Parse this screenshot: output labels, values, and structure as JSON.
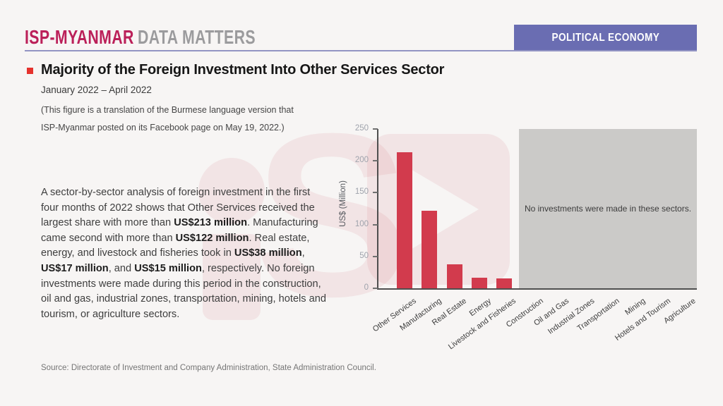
{
  "header": {
    "brand_primary": "ISP-MYANMAR",
    "brand_secondary": "DATA MATTERS",
    "category_badge": "POLITICAL ECONOMY"
  },
  "title_block": {
    "title": "Majority of the Foreign Investment Into Other Services Sector",
    "period": "January 2022 – April 2022",
    "note_line1": "(This figure is a translation of the Burmese language version that",
    "note_line2": "ISP-Myanmar posted on its Facebook page on May 19, 2022.)"
  },
  "body_paragraph": {
    "segments": [
      {
        "text": "A sector-by-sector analysis of foreign investment in the first four months of 2022 shows that Other Services received the largest share with more than ",
        "bold": false
      },
      {
        "text": "US$213 million",
        "bold": true
      },
      {
        "text": ". Manufacturing came second with more than ",
        "bold": false
      },
      {
        "text": "US$122 million",
        "bold": true
      },
      {
        "text": ". Real estate, energy, and livestock and fisheries took in ",
        "bold": false
      },
      {
        "text": "US$38 million",
        "bold": true
      },
      {
        "text": ", ",
        "bold": false
      },
      {
        "text": "US$17 million",
        "bold": true
      },
      {
        "text": ", and ",
        "bold": false
      },
      {
        "text": "US$15 million",
        "bold": true
      },
      {
        "text": ", respectively. No foreign investments were made during this period in the construction, oil and gas, industrial zones, transportation, mining, hotels and tourism, or agriculture sectors.",
        "bold": false
      }
    ]
  },
  "chart_data": {
    "type": "bar",
    "title": "",
    "xlabel": "",
    "ylabel": "US$ (Million)",
    "ylim": [
      0,
      250
    ],
    "yticks": [
      0,
      50,
      100,
      150,
      200,
      250
    ],
    "grid": false,
    "legend": "none",
    "categories": [
      "Other Services",
      "Manufacturing",
      "Real Estate",
      "Energy",
      "Livestock and Fisheries",
      "Construction",
      "Oil and Gas",
      "Industrial Zones",
      "Transportation",
      "Mining",
      "Hotels and Tourism",
      "Agriculture"
    ],
    "values": [
      213,
      122,
      38,
      17,
      15,
      0,
      0,
      0,
      0,
      0,
      0,
      0
    ],
    "bar_color": "#d23b4d",
    "no_data_overlay": {
      "text": "No investments were made in these sectors.",
      "covered_categories": [
        "Construction",
        "Oil and Gas",
        "Industrial Zones",
        "Transportation",
        "Mining",
        "Hotels and Tourism",
        "Agriculture"
      ],
      "box_color": "#cbcac8"
    }
  },
  "source": "Source: Directorate of Investment and Company Administration, State Administration Council.",
  "colors": {
    "background": "#f7f5f4",
    "brand_magenta": "#bb2059",
    "brand_gray": "#9b9b9d",
    "badge_purple": "#6a6db2",
    "rule_purple": "#9294c3",
    "bullet_red": "#e5322d",
    "bar_red": "#d23b4d",
    "watermark_pink": "rgba(203,62,80,0.09)"
  }
}
